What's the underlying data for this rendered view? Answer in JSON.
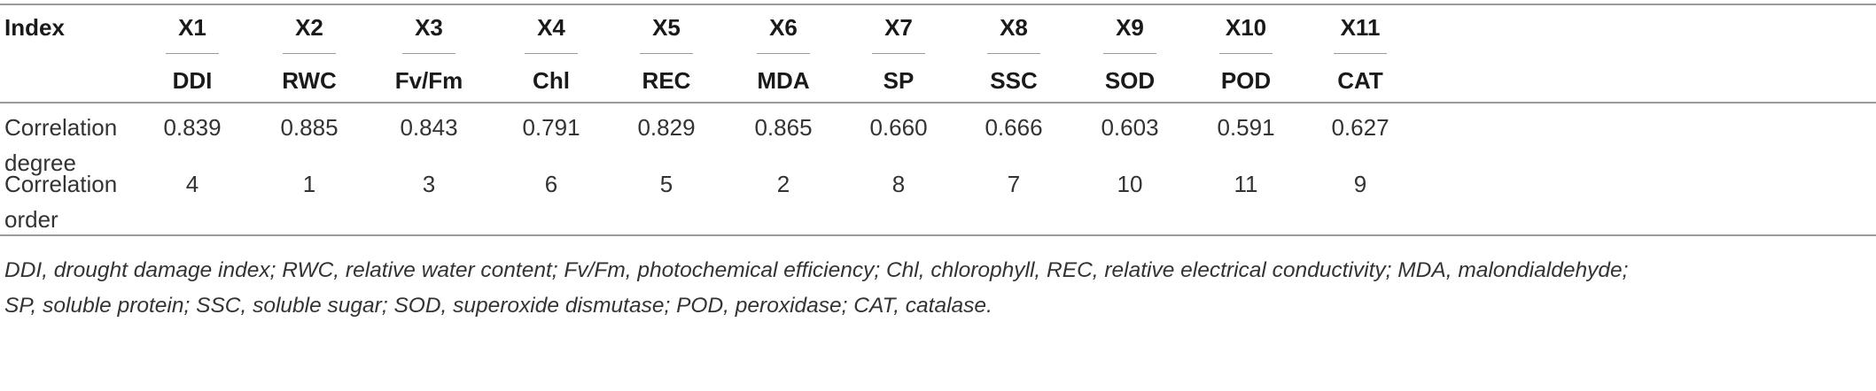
{
  "table": {
    "index_label": "Index",
    "columns": [
      {
        "code": "X1",
        "abbr": "DDI"
      },
      {
        "code": "X2",
        "abbr": "RWC"
      },
      {
        "code": "X3",
        "abbr": "Fv/Fm"
      },
      {
        "code": "X4",
        "abbr": "Chl"
      },
      {
        "code": "X5",
        "abbr": "REC"
      },
      {
        "code": "X6",
        "abbr": "MDA"
      },
      {
        "code": "X7",
        "abbr": "SP"
      },
      {
        "code": "X8",
        "abbr": "SSC"
      },
      {
        "code": "X9",
        "abbr": "SOD"
      },
      {
        "code": "X10",
        "abbr": "POD"
      },
      {
        "code": "X11",
        "abbr": "CAT"
      }
    ],
    "rows": [
      {
        "label_line1": "Correlation",
        "label_line2": "degree",
        "values": [
          "0.839",
          "0.885",
          "0.843",
          "0.791",
          "0.829",
          "0.865",
          "0.660",
          "0.666",
          "0.603",
          "0.591",
          "0.627"
        ]
      },
      {
        "label_line1": "Correlation",
        "label_line2": "order",
        "values": [
          "4",
          "1",
          "3",
          "6",
          "5",
          "2",
          "8",
          "7",
          "10",
          "11",
          "9"
        ]
      }
    ]
  },
  "footnote": {
    "line1": "DDI, drought damage index; RWC, relative water content; Fv/Fm, photochemical efficiency; Chl, chlorophyll, REC, relative electrical conductivity; MDA, malondialdehyde;",
    "line2": "SP, soluble protein; SSC, soluble sugar; SOD, superoxide dismutase; POD, peroxidase; CAT, catalase."
  }
}
